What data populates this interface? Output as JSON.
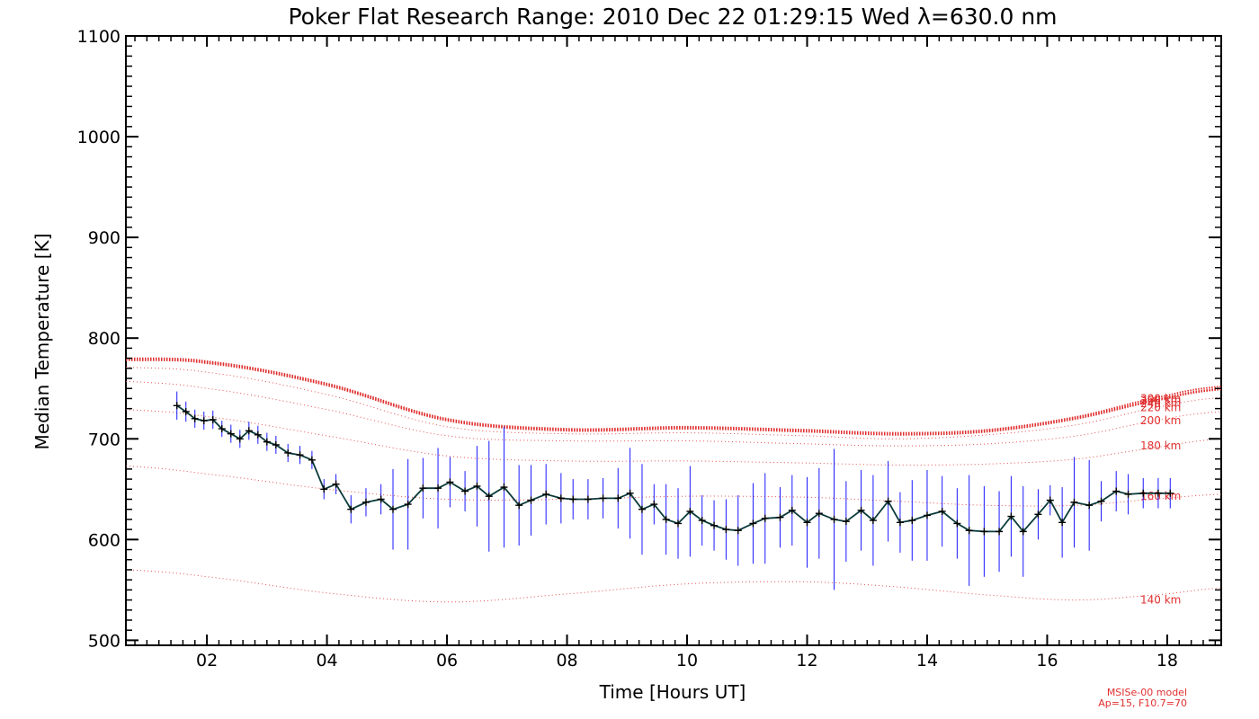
{
  "chart_data": {
    "type": "line",
    "title": "Poker Flat Research Range: 2010 Dec 22 01:29:15 Wed λ=630.0 nm",
    "xlabel": "Time [Hours UT]",
    "ylabel": "Median Temperature [K]",
    "xlim": [
      0.65,
      18.9
    ],
    "ylim": [
      495,
      1100
    ],
    "x_ticks": [
      "02",
      "04",
      "06",
      "08",
      "10",
      "12",
      "14",
      "16",
      "18"
    ],
    "x_tick_values": [
      2,
      4,
      6,
      8,
      10,
      12,
      14,
      16,
      18
    ],
    "y_ticks": [
      "500",
      "600",
      "700",
      "800",
      "900",
      "1000",
      "1100"
    ],
    "y_tick_values": [
      500,
      600,
      700,
      800,
      900,
      1000,
      1100
    ],
    "colors": {
      "data_line": "#0a3a3a",
      "error_bars": "#1a1aff",
      "model": "#e03030"
    },
    "series": [
      {
        "type": "line-errorbar",
        "x": [
          1.5,
          1.65,
          1.8,
          1.95,
          2.1,
          2.25,
          2.4,
          2.55,
          2.7,
          2.85,
          3.0,
          3.15,
          3.35,
          3.55,
          3.75,
          3.95,
          4.15,
          4.4,
          4.65,
          4.9,
          5.1,
          5.35,
          5.6,
          5.85,
          6.05,
          6.3,
          6.5,
          6.7,
          6.95,
          7.2,
          7.4,
          7.65,
          7.9,
          8.1,
          8.35,
          8.6,
          8.85,
          9.05,
          9.25,
          9.45,
          9.65,
          9.85,
          10.05,
          10.25,
          10.45,
          10.65,
          10.85,
          11.1,
          11.3,
          11.55,
          11.75,
          12.0,
          12.2,
          12.45,
          12.65,
          12.9,
          13.1,
          13.35,
          13.55,
          13.75,
          14.0,
          14.25,
          14.5,
          14.7,
          14.95,
          15.2,
          15.4,
          15.6,
          15.85,
          16.05,
          16.25,
          16.45,
          16.7,
          16.9,
          17.15,
          17.35,
          17.6,
          17.85,
          18.05
        ],
        "y": [
          733,
          727,
          720,
          718,
          719,
          710,
          705,
          700,
          708,
          704,
          697,
          694,
          686,
          684,
          679,
          650,
          655,
          630,
          637,
          640,
          630,
          635,
          651,
          651,
          657,
          648,
          653,
          643,
          652,
          634,
          639,
          645,
          641,
          640,
          640,
          641,
          641,
          646,
          630,
          635,
          620,
          616,
          628,
          619,
          614,
          610,
          609,
          616,
          621,
          622,
          629,
          617,
          626,
          620,
          618,
          629,
          619,
          638,
          617,
          619,
          624,
          628,
          616,
          609,
          608,
          608,
          623,
          608,
          625,
          639,
          617,
          637,
          634,
          638,
          648,
          645,
          646,
          646,
          646
        ],
        "err": [
          14,
          10,
          9,
          9,
          9,
          8,
          9,
          9,
          9,
          9,
          9,
          9,
          9,
          9,
          9,
          10,
          10,
          14,
          14,
          15,
          40,
          45,
          30,
          40,
          25,
          20,
          40,
          55,
          60,
          40,
          35,
          30,
          25,
          20,
          20,
          20,
          30,
          45,
          45,
          20,
          35,
          35,
          45,
          25,
          25,
          30,
          35,
          40,
          45,
          30,
          35,
          45,
          45,
          70,
          40,
          40,
          45,
          40,
          30,
          40,
          45,
          35,
          35,
          55,
          45,
          40,
          40,
          45,
          25,
          15,
          35,
          45,
          45,
          20,
          20,
          20,
          15,
          15,
          15
        ]
      },
      {
        "name": "300 km",
        "type": "model",
        "x": [
          0.65,
          2,
          4,
          6,
          8,
          10,
          12,
          13.5,
          15,
          16.5,
          18,
          18.9
        ],
        "y": [
          780,
          777,
          755,
          720,
          710,
          712,
          709,
          706,
          709,
          722,
          743,
          752
        ]
      },
      {
        "name": "260 km",
        "type": "model",
        "x": [
          0.65,
          2,
          4,
          6,
          8,
          10,
          12,
          13.5,
          15,
          16.5,
          18,
          18.9
        ],
        "y": [
          779,
          776,
          754,
          719,
          709,
          711,
          708,
          705,
          708,
          721,
          741,
          750
        ]
      },
      {
        "name": "240 km",
        "type": "model",
        "x": [
          0.65,
          2,
          4,
          6,
          8,
          10,
          12,
          13.5,
          15,
          16.5,
          18,
          18.9
        ],
        "y": [
          778,
          775,
          753,
          718,
          708,
          710,
          707,
          704,
          707,
          720,
          740,
          749
        ]
      },
      {
        "name": "220 km",
        "type": "model",
        "x": [
          0.65,
          2,
          4,
          6,
          8,
          10,
          12,
          13.5,
          15,
          16.5,
          18,
          18.9
        ],
        "y": [
          771,
          766,
          744,
          712,
          705,
          706,
          703,
          700,
          704,
          714,
          733,
          741
        ]
      },
      {
        "name": "200 km",
        "type": "model",
        "x": [
          0.65,
          2,
          4,
          6,
          8,
          10,
          12,
          13.5,
          15,
          16.5,
          18,
          18.9
        ],
        "y": [
          757,
          750,
          729,
          703,
          698,
          698,
          695,
          693,
          695,
          703,
          720,
          727
        ]
      },
      {
        "name": "180 km",
        "type": "model",
        "x": [
          0.65,
          2,
          4,
          6,
          8,
          10,
          12,
          13.5,
          15,
          16.5,
          18,
          18.9
        ],
        "y": [
          729,
          722,
          703,
          683,
          678,
          678,
          676,
          674,
          675,
          680,
          693,
          700
        ]
      },
      {
        "name": "160 km",
        "type": "model",
        "x": [
          0.65,
          2,
          4,
          6,
          8,
          10,
          12,
          13.5,
          15,
          16.5,
          18,
          18.9
        ],
        "y": [
          673,
          665,
          650,
          640,
          640,
          643,
          642,
          638,
          634,
          634,
          641,
          645
        ]
      },
      {
        "name": "140 km",
        "type": "model",
        "x": [
          0.65,
          2,
          4,
          6,
          8,
          10,
          12,
          13.5,
          15,
          16.5,
          18,
          18.9
        ],
        "y": [
          570,
          563,
          547,
          538,
          546,
          556,
          558,
          553,
          545,
          540,
          546,
          552
        ]
      }
    ],
    "model_labels": [
      {
        "text": "300 km",
        "y": 740
      },
      {
        "text": "260 km",
        "y": 738
      },
      {
        "text": "240 km",
        "y": 735
      },
      {
        "text": "220 km",
        "y": 731
      },
      {
        "text": "200 km",
        "y": 718
      },
      {
        "text": "180 km",
        "y": 693
      },
      {
        "text": "160 km",
        "y": 643
      },
      {
        "text": "140 km",
        "y": 540
      }
    ],
    "annotations": [
      "MSISe-00 model",
      "Ap=15, F10.7=70"
    ],
    "grid": false
  }
}
